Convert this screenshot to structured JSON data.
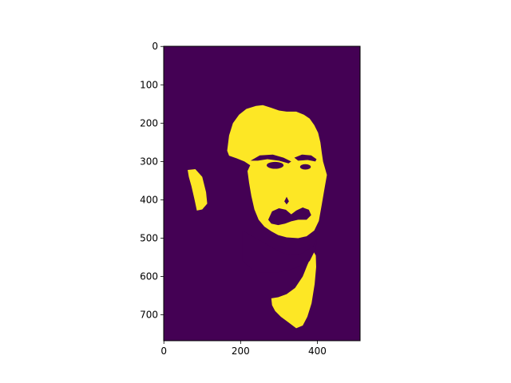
{
  "chart_data": {
    "type": "heatmap",
    "title": "",
    "xlabel": "",
    "ylabel": "",
    "image_size": {
      "rows": 768,
      "cols": 512
    },
    "xlim": [
      -0.5,
      511.5
    ],
    "ylim": [
      767.5,
      -0.5
    ],
    "x_ticks": [
      0,
      200,
      400
    ],
    "y_ticks": [
      0,
      100,
      200,
      300,
      400,
      500,
      600,
      700
    ],
    "colormap": "viridis",
    "value_range": [
      0,
      1
    ],
    "colors": {
      "low": "#440154",
      "high": "#fde725"
    },
    "content": "binary thresholded portrait mask (face, ear and neck in high value, background in low value)",
    "grid": false,
    "legend": "none"
  }
}
